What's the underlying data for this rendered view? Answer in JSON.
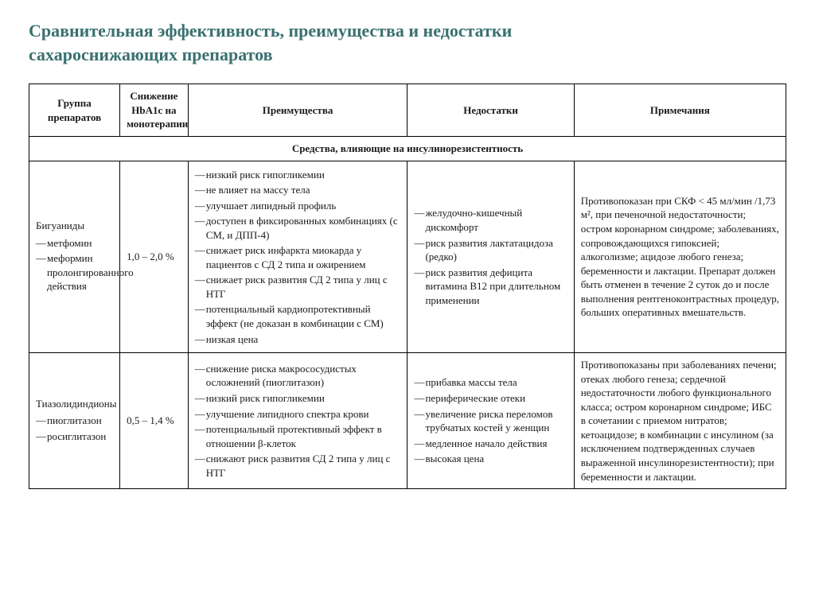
{
  "title": "Сравнительная эффективность, преимущества и недостатки сахароснижающих препаратов",
  "headers": {
    "group": "Группа препаратов",
    "hba1c": "Снижение HbA1c на монотерапии",
    "advantages": "Преимущества",
    "disadvantages": "Недостатки",
    "notes": "Примечания"
  },
  "section": "Средства, влияющие на инсулинорезистентность",
  "rows": [
    {
      "group_name": "Бигуаниды",
      "group_sub": [
        "метфомин",
        "меформин пролонгированного действия"
      ],
      "hba1c": "1,0 – 2,0 %",
      "advantages": [
        "низкий риск гипогликемии",
        "не влияет на массу тела",
        "улучшает липидный профиль",
        "доступен в фиксированных комбинациях (с СМ, и ДПП-4)",
        "снижает риск инфаркта миокарда у пациентов с СД 2 типа и ожирением",
        "снижает риск развития СД 2 типа у лиц с НТГ",
        "потенциальный кардиопротективный эффект (не доказан в комбинации с СМ)",
        "низкая цена"
      ],
      "disadvantages": [
        "желудочно-кишечный дискомфорт",
        "риск развития лактатацидоза (редко)",
        "риск развития дефицита витамина B12 при длительном применении"
      ],
      "notes": "Противопоказан при СКФ < 45 мл/мин /1,73 м², при печеночной недостаточности; остром коронарном синдроме; заболеваниях, сопровождающихся гипоксией; алкоголизме; ацидозе любого генеза; беременности и лактации. Препарат должен быть отменен в течение 2 суток до и после выполнения рентгеноконтрастных процедур, больших оперативных вмешательств."
    },
    {
      "group_name": "Тиазолидиндионы",
      "group_sub": [
        "пиоглитазон",
        "росиглитазон"
      ],
      "hba1c": "0,5 – 1,4 %",
      "advantages": [
        "снижение риска макрососудистых осложнений (пиоглитазон)",
        "низкий риск гипогликемии",
        "улучшение липидного спектра крови",
        "потенциальный протективный эффект в отношении β-клеток",
        "снижают риск развития СД 2 типа у лиц с НТГ"
      ],
      "disadvantages": [
        "прибавка массы тела",
        "периферические отеки",
        "увеличение риска переломов трубчатых костей у женщин",
        "медленное начало действия",
        "высокая цена"
      ],
      "notes": "Противопоказаны при заболеваниях печени; отеках любого генеза; сердечной недостаточности любого функционального класса; остром коронарном синдроме; ИБС в сочетании с приемом нитратов; кетоацидозе; в комбинации с инсулином (за исключением подтвержденных случаев выраженной инсулинорезистентности); при беременности и лактации."
    }
  ]
}
